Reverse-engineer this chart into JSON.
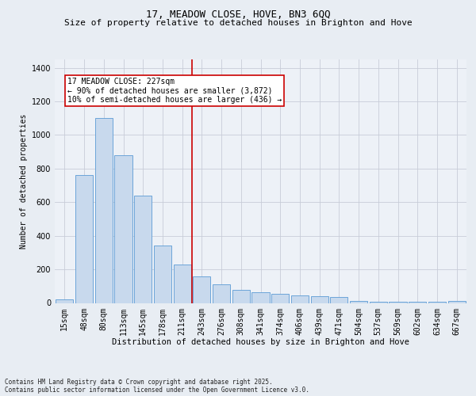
{
  "title": "17, MEADOW CLOSE, HOVE, BN3 6QQ",
  "subtitle": "Size of property relative to detached houses in Brighton and Hove",
  "xlabel": "Distribution of detached houses by size in Brighton and Hove",
  "ylabel": "Number of detached properties",
  "categories": [
    "15sqm",
    "48sqm",
    "80sqm",
    "113sqm",
    "145sqm",
    "178sqm",
    "211sqm",
    "243sqm",
    "276sqm",
    "308sqm",
    "341sqm",
    "374sqm",
    "406sqm",
    "439sqm",
    "471sqm",
    "504sqm",
    "537sqm",
    "569sqm",
    "602sqm",
    "634sqm",
    "667sqm"
  ],
  "values": [
    20,
    760,
    1100,
    880,
    640,
    340,
    230,
    160,
    110,
    80,
    65,
    55,
    45,
    40,
    35,
    10,
    5,
    5,
    5,
    5,
    10
  ],
  "bar_color": "#c8d9ed",
  "bar_edge_color": "#5b9bd5",
  "vline_x": 6.5,
  "vline_color": "#cc0000",
  "annotation_text": "17 MEADOW CLOSE: 227sqm\n← 90% of detached houses are smaller (3,872)\n10% of semi-detached houses are larger (436) →",
  "annotation_box_color": "#ffffff",
  "annotation_box_edge": "#cc0000",
  "ylim": [
    0,
    1450
  ],
  "yticks": [
    0,
    200,
    400,
    600,
    800,
    1000,
    1200,
    1400
  ],
  "footer": "Contains HM Land Registry data © Crown copyright and database right 2025.\nContains public sector information licensed under the Open Government Licence v3.0.",
  "bg_color": "#e8edf3",
  "plot_bg_color": "#edf1f7",
  "title_fontsize": 9,
  "subtitle_fontsize": 8,
  "label_fontsize": 7,
  "tick_fontsize": 7,
  "footer_fontsize": 5.5,
  "annotation_fontsize": 7
}
